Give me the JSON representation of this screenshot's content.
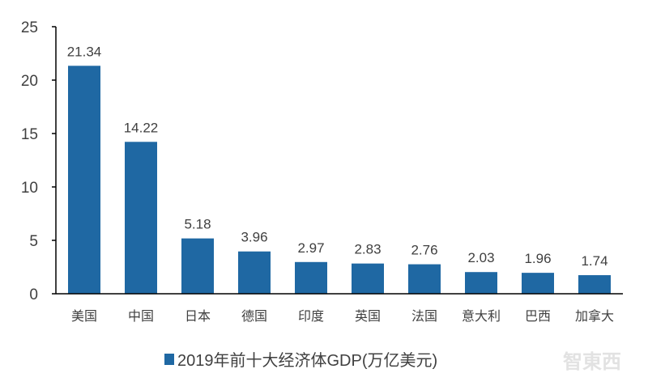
{
  "chart_data": {
    "type": "bar",
    "categories": [
      "美国",
      "中国",
      "日本",
      "德国",
      "印度",
      "英国",
      "法国",
      "意大利",
      "巴西",
      "加拿大"
    ],
    "series": [
      {
        "name": "2019年前十大经济体GDP(万亿美元)",
        "values": [
          21.34,
          14.22,
          5.18,
          3.96,
          2.97,
          2.83,
          2.76,
          2.03,
          1.96,
          1.74
        ]
      }
    ],
    "value_labels": [
      "21.34",
      "14.22",
      "5.18",
      "3.96",
      "2.97",
      "2.83",
      "2.76",
      "2.03",
      "1.96",
      "1.74"
    ],
    "ylim": [
      0,
      25
    ],
    "yticks": [
      0,
      5,
      10,
      15,
      20,
      25
    ],
    "grid": false,
    "legend_position": "bottom",
    "bar_color": "#1f68a3",
    "axis_color": "#000000"
  },
  "watermark": "智東西"
}
